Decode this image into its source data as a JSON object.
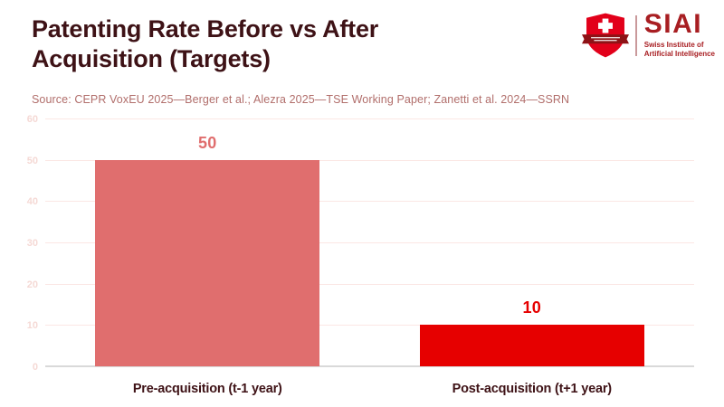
{
  "header": {
    "title": "Patenting Rate Before vs After Acquisition (Targets)",
    "source": "Source: CEPR VoxEU 2025—Berger et al.; Alezra 2025—TSE Working Paper; Zanetti et al. 2024—SSRN"
  },
  "logo": {
    "acronym": "SIAI",
    "subtitle_line1": "Swiss Institute of",
    "subtitle_line2": "Artificial Intelligence",
    "accent_color": "#A81E22",
    "shield_color": "#E2001A",
    "ribbon_color": "#8E1216"
  },
  "chart_data": {
    "type": "bar",
    "title": "Patenting Rate Before vs After Acquisition (Targets)",
    "categories": [
      "Pre-acquisition (t-1 year)",
      "Post-acquisition (t+1 year)"
    ],
    "values": [
      50,
      10
    ],
    "bar_colors": [
      "#E06E6E",
      "#E60000"
    ],
    "value_label_colors": [
      "#E06E6E",
      "#E60000"
    ],
    "xlabel": "",
    "ylabel": "",
    "ylim": [
      0,
      60
    ],
    "yticks": [
      0,
      10,
      20,
      30,
      40,
      50,
      60
    ],
    "grid": true,
    "legend": false
  },
  "colors": {
    "background": "#FFFFFF",
    "title": "#3E1216",
    "source": "#B16E6B",
    "gridline": "#FBE7E4",
    "baseline": "#D9D9D9",
    "tick_label": "#F5D9D5",
    "category_label": "#3E1216",
    "logo_accent": "#A81E22"
  }
}
